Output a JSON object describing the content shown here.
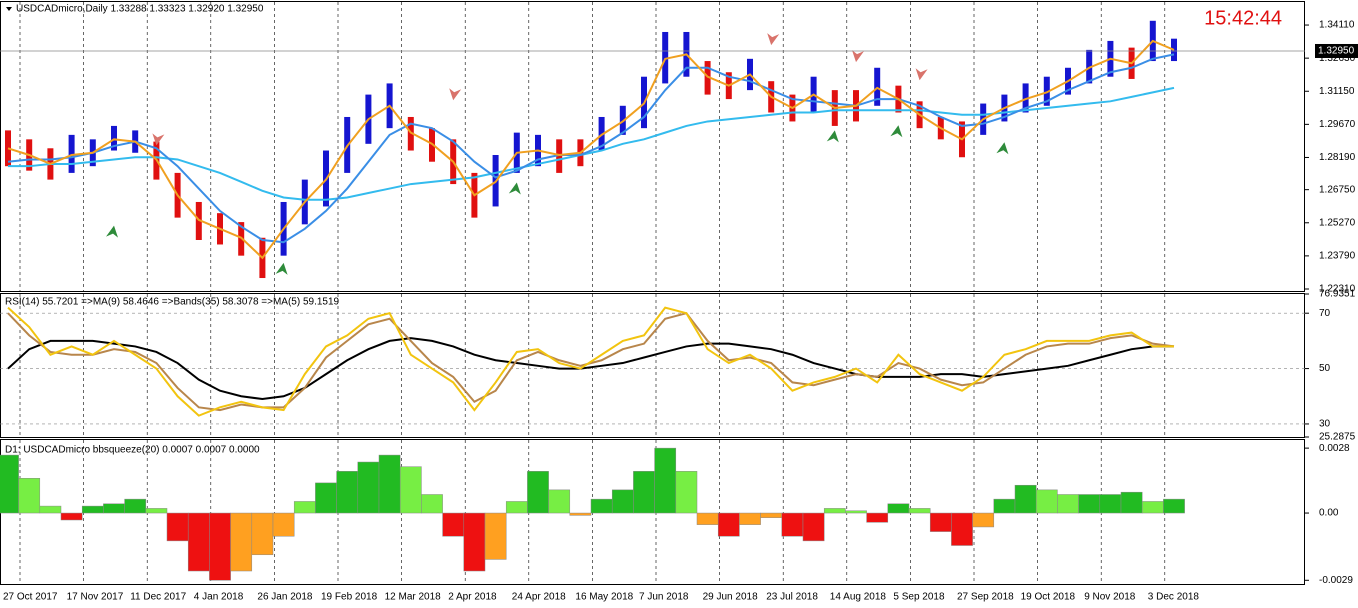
{
  "chart_data": [
    {
      "type": "hilo",
      "title": "USDCADmicro,Daily  1.33288 1.33323 1.32920 1.32950",
      "clock": "15:42:44",
      "categories": [
        "27 Oct 2017",
        null,
        null,
        "17 Nov 2017",
        null,
        null,
        "11 Dec 2017",
        null,
        null,
        "4 Jan 2018",
        null,
        null,
        "26 Jan 2018",
        null,
        null,
        "19 Feb 2018",
        null,
        null,
        "12 Mar 2018",
        null,
        null,
        "2 Apr 2018",
        null,
        null,
        "24 Apr 2018",
        null,
        null,
        "16 May 2018",
        null,
        null,
        "7 Jun 2018",
        null,
        null,
        "29 Jun 2018",
        null,
        null,
        "23 Jul 2018",
        null,
        null,
        "14 Aug 2018",
        null,
        null,
        "5 Sep 2018",
        null,
        null,
        "27 Sep 2018",
        null,
        null,
        "19 Oct 2018",
        null,
        null,
        "9 Nov 2018",
        null,
        null,
        "3 Dec 2018",
        null
      ],
      "high": [
        1.294,
        1.29,
        1.286,
        1.292,
        1.29,
        1.296,
        1.294,
        1.289,
        1.275,
        1.262,
        1.257,
        1.253,
        1.246,
        1.262,
        1.272,
        1.285,
        1.3,
        1.31,
        1.315,
        1.3,
        1.295,
        1.29,
        1.275,
        1.283,
        1.293,
        1.292,
        1.29,
        1.29,
        1.3,
        1.305,
        1.318,
        1.338,
        1.338,
        1.325,
        1.32,
        1.326,
        1.316,
        1.31,
        1.318,
        1.312,
        1.312,
        1.322,
        1.314,
        1.307,
        1.3,
        1.298,
        1.306,
        1.31,
        1.315,
        1.318,
        1.322,
        1.33,
        1.334,
        1.331,
        1.343,
        1.335
      ],
      "low": [
        1.278,
        1.276,
        1.272,
        1.275,
        1.278,
        1.285,
        1.284,
        1.272,
        1.255,
        1.245,
        1.243,
        1.238,
        1.228,
        1.238,
        1.252,
        1.26,
        1.275,
        1.288,
        1.295,
        1.285,
        1.28,
        1.27,
        1.255,
        1.26,
        1.275,
        1.278,
        1.275,
        1.278,
        1.285,
        1.292,
        1.295,
        1.315,
        1.318,
        1.31,
        1.308,
        1.312,
        1.302,
        1.298,
        1.302,
        1.296,
        1.298,
        1.305,
        1.302,
        1.295,
        1.29,
        1.282,
        1.292,
        1.298,
        1.302,
        1.305,
        1.31,
        1.315,
        1.318,
        1.317,
        1.325,
        1.325
      ],
      "bar_colors": [
        "#e01010",
        "#e01010",
        "#e01010",
        "#1515d0",
        "#1515d0",
        "#1515d0",
        "#1515d0",
        "#e01010",
        "#e01010",
        "#e01010",
        "#e01010",
        "#e01010",
        "#e01010",
        "#1515d0",
        "#1515d0",
        "#1515d0",
        "#1515d0",
        "#1515d0",
        "#1515d0",
        "#e01010",
        "#e01010",
        "#e01010",
        "#e01010",
        "#1515d0",
        "#1515d0",
        "#1515d0",
        "#e01010",
        "#e01010",
        "#1515d0",
        "#1515d0",
        "#1515d0",
        "#1515d0",
        "#1515d0",
        "#e01010",
        "#e01010",
        "#1515d0",
        "#e01010",
        "#e01010",
        "#1515d0",
        "#e01010",
        "#e01010",
        "#1515d0",
        "#e01010",
        "#e01010",
        "#e01010",
        "#e01010",
        "#1515d0",
        "#1515d0",
        "#1515d0",
        "#1515d0",
        "#1515d0",
        "#1515d0",
        "#1515d0",
        "#e01010",
        "#1515d0",
        "#1515d0"
      ],
      "series": [
        {
          "color": "#33bbee",
          "values": [
            1.278,
            1.278,
            1.279,
            1.279,
            1.28,
            1.281,
            1.282,
            1.282,
            1.281,
            1.278,
            1.275,
            1.271,
            1.267,
            1.264,
            1.263,
            1.263,
            1.264,
            1.266,
            1.268,
            1.27,
            1.271,
            1.272,
            1.273,
            1.275,
            1.277,
            1.279,
            1.281,
            1.283,
            1.285,
            1.288,
            1.29,
            1.293,
            1.296,
            1.298,
            1.299,
            1.3,
            1.301,
            1.302,
            1.302,
            1.303,
            1.303,
            1.303,
            1.303,
            1.303,
            1.302,
            1.301,
            1.301,
            1.302,
            1.303,
            1.304,
            1.305,
            1.306,
            1.307,
            1.309,
            1.311,
            1.313
          ]
        },
        {
          "color": "#3a8ee6",
          "values": [
            1.28,
            1.281,
            1.281,
            1.282,
            1.284,
            1.287,
            1.289,
            1.286,
            1.278,
            1.268,
            1.258,
            1.251,
            1.245,
            1.244,
            1.25,
            1.258,
            1.268,
            1.28,
            1.292,
            1.297,
            1.295,
            1.289,
            1.28,
            1.273,
            1.276,
            1.281,
            1.283,
            1.283,
            1.287,
            1.293,
            1.3,
            1.312,
            1.322,
            1.322,
            1.318,
            1.316,
            1.312,
            1.308,
            1.307,
            1.306,
            1.305,
            1.308,
            1.308,
            1.305,
            1.3,
            1.296,
            1.297,
            1.3,
            1.304,
            1.307,
            1.312,
            1.316,
            1.32,
            1.322,
            1.326,
            1.328
          ]
        },
        {
          "color": "#f0a020",
          "values": [
            1.286,
            1.283,
            1.279,
            1.283,
            1.284,
            1.29,
            1.289,
            1.281,
            1.265,
            1.254,
            1.25,
            1.246,
            1.237,
            1.25,
            1.262,
            1.272,
            1.287,
            1.299,
            1.305,
            1.293,
            1.288,
            1.28,
            1.265,
            1.271,
            1.284,
            1.285,
            1.283,
            1.284,
            1.292,
            1.298,
            1.306,
            1.326,
            1.328,
            1.318,
            1.314,
            1.319,
            1.309,
            1.304,
            1.31,
            1.304,
            1.305,
            1.313,
            1.308,
            1.301,
            1.295,
            1.29,
            1.299,
            1.304,
            1.308,
            1.311,
            1.316,
            1.322,
            1.326,
            1.324,
            1.334,
            1.33
          ]
        }
      ],
      "sell_signals": {
        "color": "#d9736b",
        "x": [
          7,
          21,
          36,
          40,
          43
        ],
        "values": [
          1.2873,
          1.3075,
          1.3321,
          1.3245,
          1.3164
        ]
      },
      "buy_signals": {
        "color": "#2e8b3a",
        "x": [
          5,
          13,
          24,
          39,
          42,
          47
        ],
        "values": [
          1.2514,
          1.2348,
          1.2707,
          1.294,
          1.2963,
          1.2887
        ]
      },
      "last_price": {
        "value": 1.3295,
        "label": "1.32950"
      },
      "ylim": [
        1.2222,
        1.3514
      ],
      "yticks": [
        {
          "value": 1.3411,
          "label": "1.34110"
        },
        {
          "value": 1.3263,
          "label": "1.32630"
        },
        {
          "value": 1.3115,
          "label": "1.31150"
        },
        {
          "value": 1.2967,
          "label": "1.29670"
        },
        {
          "value": 1.2819,
          "label": "1.28190"
        },
        {
          "value": 1.2675,
          "label": "1.26750"
        },
        {
          "value": 1.2527,
          "label": "1.25270"
        },
        {
          "value": 1.2379,
          "label": "1.23790"
        },
        {
          "value": 1.2231,
          "label": "1.22310"
        }
      ],
      "grid": false,
      "xgrid": true
    },
    {
      "type": "line",
      "title": "RSI(14) 55.7201  =>MA(9) 58.4646  =>Bands(35) 58.3078  =>MA(5) 59.1519",
      "series": [
        {
          "color": "#000000",
          "values": [
            50,
            57,
            60,
            60,
            60,
            59,
            58,
            56,
            52,
            46,
            42,
            40,
            39,
            40,
            43,
            48,
            53,
            57,
            60,
            61,
            60,
            58,
            55,
            53,
            52,
            51,
            50,
            50,
            51,
            52,
            54,
            56,
            58,
            59,
            59,
            58,
            57,
            55,
            52,
            50,
            48,
            47,
            47,
            47,
            48,
            48,
            47,
            48,
            49,
            50,
            51,
            53,
            55,
            57,
            58,
            58
          ]
        },
        {
          "color": "#b8864b",
          "values": [
            70,
            62,
            56,
            55,
            55,
            57,
            56,
            52,
            43,
            36,
            35,
            37,
            36,
            36,
            43,
            54,
            60,
            66,
            68,
            60,
            52,
            47,
            38,
            42,
            53,
            56,
            53,
            51,
            53,
            57,
            59,
            68,
            70,
            60,
            53,
            54,
            52,
            45,
            44,
            46,
            48,
            47,
            52,
            50,
            46,
            44,
            45,
            50,
            55,
            58,
            59,
            59,
            61,
            62,
            59,
            58
          ]
        },
        {
          "color": "#f2c40f",
          "values": [
            72,
            65,
            55,
            58,
            55,
            60,
            55,
            50,
            40,
            33,
            36,
            38,
            36,
            35,
            48,
            58,
            62,
            68,
            70,
            55,
            50,
            45,
            35,
            45,
            56,
            57,
            52,
            50,
            55,
            60,
            62,
            72,
            70,
            57,
            52,
            55,
            50,
            42,
            45,
            47,
            50,
            45,
            55,
            48,
            45,
            42,
            47,
            55,
            57,
            60,
            60,
            60,
            62,
            63,
            58,
            58
          ]
        }
      ],
      "ylim": [
        25.2875,
        76.9351
      ],
      "yticks": [
        25.2875,
        30,
        50,
        70,
        76.9351
      ],
      "grid": true
    },
    {
      "type": "bar",
      "title": "D1: USDCADmicro bbsqueeze(20) 0.0007 0.0007 0.0000",
      "values": [
        0.0025,
        0.0015,
        0.0003,
        -0.0003,
        0.0003,
        0.0004,
        0.0006,
        0.0002,
        -0.0012,
        -0.0025,
        -0.0029,
        -0.0025,
        -0.0018,
        -0.001,
        0.0005,
        0.0013,
        0.0018,
        0.0022,
        0.0025,
        0.002,
        0.0008,
        -0.001,
        -0.0025,
        -0.002,
        0.0005,
        0.0018,
        0.001,
        -0.0001,
        0.0006,
        0.001,
        0.0018,
        0.0028,
        0.0018,
        -0.0005,
        -0.001,
        -0.0005,
        -0.0002,
        -0.001,
        -0.0012,
        0.0002,
        0.0001,
        -0.0004,
        0.0004,
        0.0002,
        -0.0008,
        -0.0014,
        -0.0006,
        0.0006,
        0.0012,
        0.001,
        0.0008,
        0.0008,
        0.0008,
        0.0009,
        0.0005,
        0.0006
      ],
      "colors": {
        "up_grow": "#22bb22",
        "up_shrink": "#77ee44",
        "down_grow": "#ee1111",
        "down_shrink": "#ffa020"
      },
      "ylim": [
        -0.00306,
        0.00315
      ],
      "yticks": [
        0.0028,
        {
          "value": 0,
          "label": "0.00"
        },
        -0.0029
      ],
      "grid": false
    }
  ]
}
